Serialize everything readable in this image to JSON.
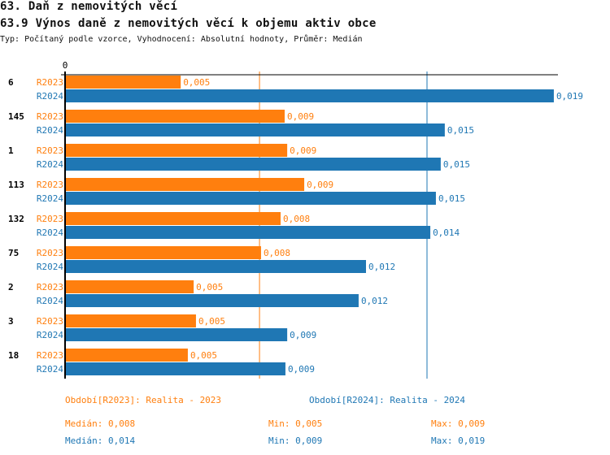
{
  "header": {
    "title": "63. Daň z nemovitých věcí",
    "subtitle": "63.9 Výnos daně z nemovitých věcí k objemu aktiv obce",
    "description": "Typ: Počítaný podle vzorce, Vyhodnocení: Absolutní hodnoty, Průměr: Medián"
  },
  "chart_data": {
    "type": "bar",
    "orientation": "horizontal",
    "title": "63.9 Výnos daně z nemovitých věcí k objemu aktiv obce",
    "x_tick_labels": [
      "0"
    ],
    "xlim": [
      0,
      0.0195
    ],
    "colors": {
      "R2023": "#ff7f0e",
      "R2024": "#1f77b4"
    },
    "categories": [
      "6",
      "145",
      "1",
      "113",
      "132",
      "75",
      "2",
      "3",
      "18"
    ],
    "series": [
      {
        "name": "R2023",
        "values": [
          0.00455,
          0.00864,
          0.00874,
          0.00941,
          0.00848,
          0.00771,
          0.00506,
          0.00515,
          0.00483
        ],
        "labels": [
          "0,005",
          "0,009",
          "0,009",
          "0,009",
          "0,008",
          "0,008",
          "0,005",
          "0,005",
          "0,005"
        ]
      },
      {
        "name": "R2024",
        "values": [
          0.01923,
          0.01494,
          0.01478,
          0.01459,
          0.01437,
          0.01184,
          0.01155,
          0.00874,
          0.00867
        ],
        "labels": [
          "0,019",
          "0,015",
          "0,015",
          "0,015",
          "0,014",
          "0,012",
          "0,012",
          "0,009",
          "0,009"
        ]
      }
    ],
    "median_lines": [
      {
        "series": "R2023",
        "value": 0.00765
      },
      {
        "series": "R2024",
        "value": 0.01424
      }
    ],
    "legend": [
      {
        "series": "R2023",
        "text": "Období[R2023]: Realita - 2023"
      },
      {
        "series": "R2024",
        "text": "Období[R2024]: Realita - 2024"
      }
    ],
    "stats": [
      {
        "series": "R2023",
        "median": "Medián: 0,008",
        "min": "Min: 0,005",
        "max": "Max: 0,009"
      },
      {
        "series": "R2024",
        "median": "Medián: 0,014",
        "min": "Min: 0,009",
        "max": "Max: 0,019"
      }
    ]
  }
}
